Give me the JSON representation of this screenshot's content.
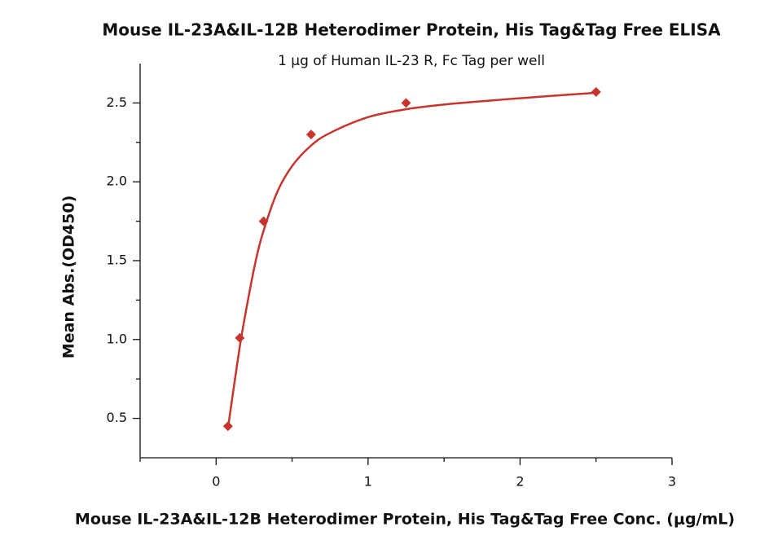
{
  "chart_data": {
    "type": "scatter",
    "title": "Mouse IL-23A&IL-12B Heterodimer Protein, His Tag&Tag Free ELISA",
    "subtitle": "1 μg of Human IL-23 R, Fc Tag per well",
    "x_label": "Mouse IL-23A&IL-12B Heterodimer Protein, His Tag&Tag Free Conc. (μg/mL)",
    "y_label": "Mean Abs.(OD450)",
    "color": "#c8352f",
    "x": [
      0.078,
      0.156,
      0.3125,
      0.625,
      1.25,
      2.5
    ],
    "values": [
      0.45,
      1.01,
      1.75,
      2.3,
      2.5,
      2.57
    ],
    "fit": {
      "x": [
        0.08,
        0.12,
        0.16,
        0.2,
        0.25,
        0.3,
        0.4,
        0.5,
        0.625,
        0.75,
        1.0,
        1.25,
        1.5,
        2.0,
        2.5
      ],
      "values": [
        0.45,
        0.72,
        0.98,
        1.2,
        1.45,
        1.65,
        1.93,
        2.1,
        2.23,
        2.31,
        2.41,
        2.46,
        2.49,
        2.53,
        2.565
      ]
    },
    "xlim": [
      -0.5,
      3
    ],
    "xticks": [
      0,
      1,
      2,
      3
    ],
    "minor_xticks": [
      -0.5,
      0.5,
      1.5,
      2.5
    ],
    "ylim": [
      0.25,
      2.75
    ],
    "yticks": [
      {
        "value": 0.5,
        "label": "0.5"
      },
      {
        "value": 1,
        "label": "1.0"
      },
      {
        "value": 1.5,
        "label": "1.5"
      },
      {
        "value": 2,
        "label": "2.0"
      },
      {
        "value": 2.5,
        "label": "2.5"
      }
    ],
    "minor_yticks": [
      0.75,
      1.25,
      1.75,
      2.25
    ]
  }
}
